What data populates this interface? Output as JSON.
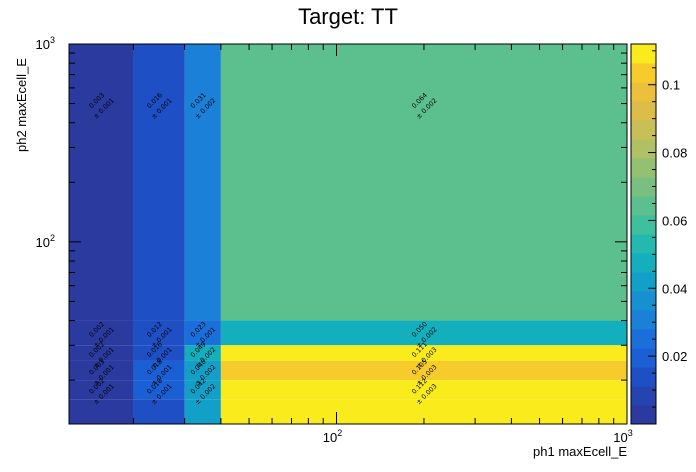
{
  "chart_data": {
    "type": "heatmap",
    "title": "Target: TT",
    "xlabel": "ph1 maxEcell_E",
    "ylabel": "ph2 maxEcell_E",
    "x_scale": "log",
    "y_scale": "log",
    "xlim": [
      12,
      1000
    ],
    "ylim": [
      12,
      1000
    ],
    "x_edges": [
      12,
      20,
      30,
      40,
      1000
    ],
    "y_edges": [
      12,
      16,
      20,
      25,
      30,
      40,
      1000
    ],
    "x_ticks": [
      {
        "value": 100,
        "label": "10",
        "exp": "2"
      },
      {
        "value": 1000,
        "label": "10",
        "exp": "3"
      }
    ],
    "y_ticks": [
      {
        "value": 100,
        "label": "10",
        "exp": "2"
      },
      {
        "value": 1000,
        "label": "10",
        "exp": "3"
      }
    ],
    "colorbar": {
      "min": 0,
      "max": 0.112,
      "ticks": [
        {
          "value": 0.02,
          "label": "0.02"
        },
        {
          "value": 0.04,
          "label": "0.04"
        },
        {
          "value": 0.06,
          "label": "0.06"
        },
        {
          "value": 0.08,
          "label": "0.08"
        },
        {
          "value": 0.1,
          "label": "0.1"
        }
      ]
    },
    "cells": [
      {
        "xi": 0,
        "yi": 5,
        "v": 0.003,
        "label": "0.003",
        "err": "± 0.001"
      },
      {
        "xi": 1,
        "yi": 5,
        "v": 0.016,
        "label": "0.016",
        "err": "± 0.001"
      },
      {
        "xi": 2,
        "yi": 5,
        "v": 0.031,
        "label": "0.031",
        "err": "± 0.002"
      },
      {
        "xi": 3,
        "yi": 5,
        "v": 0.064,
        "label": "0.064",
        "err": "± 0.002"
      },
      {
        "xi": 0,
        "yi": 4,
        "v": 0.002,
        "label": "0.002",
        "err": "± 0.001"
      },
      {
        "xi": 1,
        "yi": 4,
        "v": 0.012,
        "label": "0.012",
        "err": "± 0.001"
      },
      {
        "xi": 2,
        "yi": 4,
        "v": 0.023,
        "label": "0.023",
        "err": "± 0.001"
      },
      {
        "xi": 3,
        "yi": 4,
        "v": 0.05,
        "label": "0.050",
        "err": "± 0.002"
      },
      {
        "xi": 0,
        "yi": 3,
        "v": 0.002,
        "label": "0.002",
        "err": "± 0.001"
      },
      {
        "xi": 1,
        "yi": 3,
        "v": 0.016,
        "label": "0.016",
        "err": "± 0.001"
      },
      {
        "xi": 2,
        "yi": 3,
        "v": 0.049,
        "label": "0.049",
        "err": "± 0.002"
      },
      {
        "xi": 3,
        "yi": 3,
        "v": 0.111,
        "label": "0.111",
        "err": "± 0.003"
      },
      {
        "xi": 0,
        "yi": 2,
        "v": 0.003,
        "label": "0.003",
        "err": "± 0.001"
      },
      {
        "xi": 1,
        "yi": 2,
        "v": 0.018,
        "label": "0.018",
        "err": "± 0.001"
      },
      {
        "xi": 2,
        "yi": 2,
        "v": 0.04,
        "label": "0.040",
        "err": "± 0.002"
      },
      {
        "xi": 3,
        "yi": 2,
        "v": 0.105,
        "label": "0.105",
        "err": "± 0.003"
      },
      {
        "xi": 0,
        "yi": 1,
        "v": 0.002,
        "label": "0.002",
        "err": "± 0.001"
      },
      {
        "xi": 1,
        "yi": 1,
        "v": 0.018,
        "label": "0.018",
        "err": "± 0.001"
      },
      {
        "xi": 2,
        "yi": 1,
        "v": 0.042,
        "label": "0.042",
        "err": "± 0.002"
      },
      {
        "xi": 3,
        "yi": 1,
        "v": 0.112,
        "label": "0.112",
        "err": "± 0.003"
      },
      {
        "xi": 0,
        "yi": 0,
        "v": 0.002,
        "label": "",
        "err": ""
      },
      {
        "xi": 1,
        "yi": 0,
        "v": 0.016,
        "label": "",
        "err": ""
      },
      {
        "xi": 2,
        "yi": 0,
        "v": 0.04,
        "label": "",
        "err": ""
      },
      {
        "xi": 3,
        "yi": 0,
        "v": 0.112,
        "label": "",
        "err": ""
      }
    ],
    "palette": [
      "#2b3a9e",
      "#2444b0",
      "#1e4fc4",
      "#1b5fd4",
      "#1a6fdb",
      "#1a80d8",
      "#1690d0",
      "#12a0c8",
      "#14afbd",
      "#24b8ae",
      "#3ebf9e",
      "#5cbf8e",
      "#78bf80",
      "#94c072",
      "#b0c064",
      "#c8bf56",
      "#dcbd48",
      "#ecc03a",
      "#f6cc2c",
      "#faeb1c"
    ],
    "grid": false,
    "legend": "colorbar-right"
  }
}
